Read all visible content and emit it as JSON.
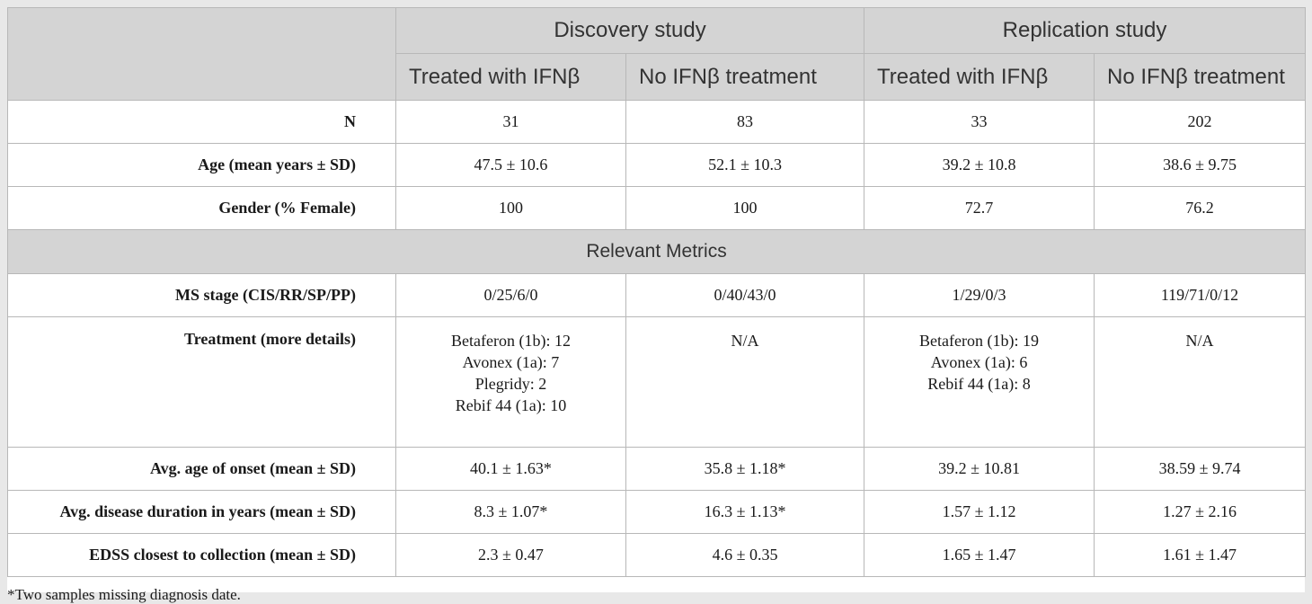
{
  "header": {
    "groups": [
      "Discovery study",
      "Replication study"
    ],
    "subcolumns": [
      "Treated with IFNβ",
      "No IFNβ treatment",
      "Treated with IFNβ",
      "No IFNβ treatment"
    ]
  },
  "rows_top": [
    {
      "label": "N",
      "values": [
        "31",
        "83",
        "33",
        "202"
      ]
    },
    {
      "label": "Age (mean years ± SD)",
      "values": [
        "47.5 ± 10.6",
        "52.1 ± 10.3",
        "39.2 ± 10.8",
        "38.6 ± 9.75"
      ]
    },
    {
      "label": "Gender (% Female)",
      "values": [
        "100",
        "100",
        "72.7",
        "76.2"
      ]
    }
  ],
  "section_title": "Relevant Metrics",
  "stage_row": {
    "label": "MS stage (CIS/RR/SP/PP)",
    "values": [
      "0/25/6/0",
      "0/40/43/0",
      "1/29/0/3",
      "119/71/0/12"
    ]
  },
  "treatment_row": {
    "label": "Treatment (more details)",
    "values": [
      [
        "Betaferon (1b): 12",
        "Avonex (1a): 7",
        "Plegridy: 2",
        "Rebif 44 (1a): 10"
      ],
      [
        "N/A"
      ],
      [
        "Betaferon (1b): 19",
        "Avonex (1a): 6",
        "Rebif 44 (1a): 8"
      ],
      [
        "N/A"
      ]
    ]
  },
  "rows_bottom": [
    {
      "label": "Avg. age of onset (mean ± SD)",
      "values": [
        "40.1 ± 1.63*",
        "35.8 ± 1.18*",
        "39.2 ± 10.81",
        "38.59 ± 9.74"
      ]
    },
    {
      "label": "Avg. disease duration in years (mean ± SD)",
      "values": [
        "8.3 ± 1.07*",
        "16.3 ± 1.13*",
        "1.57 ± 1.12",
        "1.27 ± 2.16"
      ]
    },
    {
      "label": "EDSS closest to collection (mean ± SD)",
      "values": [
        "2.3 ± 0.47",
        "4.6 ± 0.35",
        "1.65 ± 1.47",
        "1.61 ± 1.47"
      ]
    }
  ],
  "footnote": "*Two samples missing diagnosis date."
}
